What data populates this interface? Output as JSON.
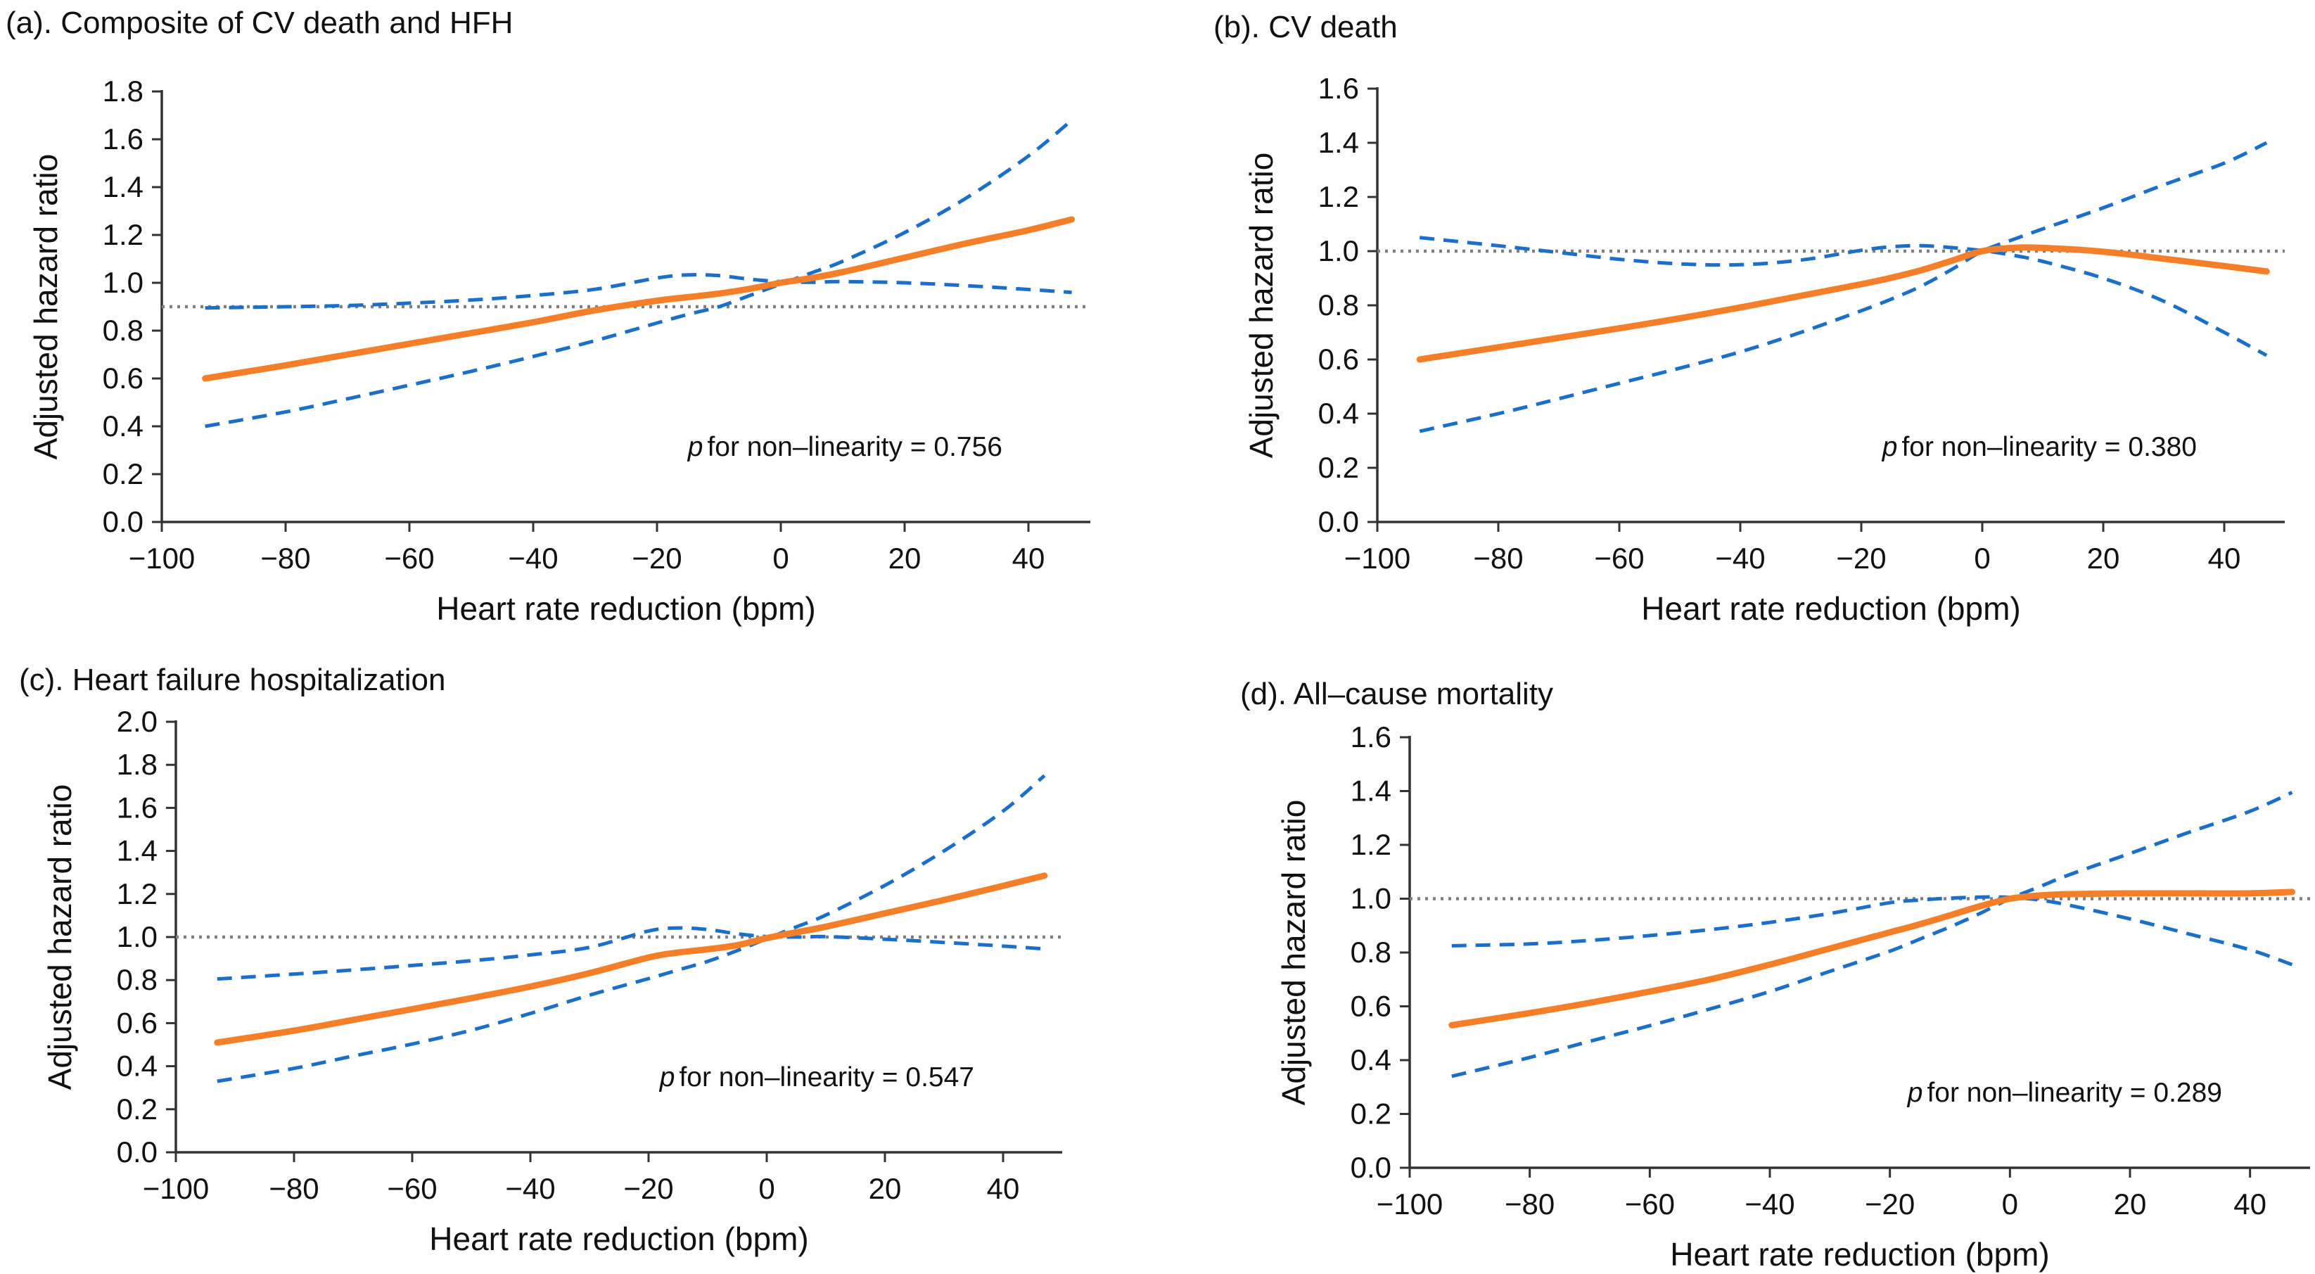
{
  "figure": {
    "p_symbol": "p",
    "colors": {
      "estimate": "#F57E28",
      "confidence_band": "#1C6FC8",
      "reference_line": "#7F7F7F",
      "axis": "#333333",
      "text": "#111111"
    }
  },
  "chart_data": [
    {
      "type": "line",
      "title": "(a). Composite of CV death and HFH",
      "xlabel": "Heart rate reduction (bpm)",
      "ylabel": "Adjusted hazard ratio",
      "p_note": "for non–linearity = 0.756",
      "p_value": 0.756,
      "xlim": [
        -100,
        50
      ],
      "ylim": [
        0,
        1.8
      ],
      "x_ticks": [
        -100,
        -80,
        -60,
        -40,
        -20,
        0,
        20,
        40
      ],
      "y_ticks": [
        0.0,
        0.2,
        0.4,
        0.6,
        0.8,
        1.0,
        1.2,
        1.4,
        1.6,
        1.8
      ],
      "reference_line_y": 0.9,
      "grid": false,
      "legend": "none",
      "x": [
        -93,
        -80,
        -70,
        -60,
        -50,
        -40,
        -30,
        -20,
        -15,
        -10,
        -5,
        0,
        5,
        10,
        20,
        30,
        40,
        47
      ],
      "series": [
        {
          "name": "Adjusted hazard ratio (estimate)",
          "style": "solid",
          "y": [
            0.6,
            0.655,
            0.7,
            0.745,
            0.79,
            0.835,
            0.885,
            0.925,
            0.94,
            0.955,
            0.975,
            1.0,
            1.02,
            1.045,
            1.105,
            1.165,
            1.22,
            1.265
          ]
        },
        {
          "name": "95% CI band A",
          "style": "dashed",
          "y": [
            0.895,
            0.9,
            0.905,
            0.915,
            0.928,
            0.947,
            0.973,
            1.02,
            1.033,
            1.03,
            1.015,
            1.005,
            1.002,
            1.005,
            1.0,
            0.988,
            0.972,
            0.96
          ]
        },
        {
          "name": "95% CI band B",
          "style": "dashed",
          "y": [
            0.4,
            0.46,
            0.515,
            0.572,
            0.63,
            0.692,
            0.758,
            0.832,
            0.868,
            0.9,
            0.947,
            0.995,
            1.042,
            1.09,
            1.21,
            1.355,
            1.53,
            1.68
          ]
        }
      ]
    },
    {
      "type": "line",
      "title": "(b). CV death",
      "xlabel": "Heart rate reduction (bpm)",
      "ylabel": "Adjusted hazard ratio",
      "p_note": "for non–linearity = 0.380",
      "p_value": 0.38,
      "xlim": [
        -100,
        50
      ],
      "ylim": [
        0,
        1.6
      ],
      "x_ticks": [
        -100,
        -80,
        -60,
        -40,
        -20,
        0,
        20,
        40
      ],
      "y_ticks": [
        0.0,
        0.2,
        0.4,
        0.6,
        0.8,
        1.0,
        1.2,
        1.4,
        1.6
      ],
      "reference_line_y": 1.0,
      "grid": false,
      "legend": "none",
      "x": [
        -93,
        -80,
        -70,
        -60,
        -50,
        -40,
        -30,
        -20,
        -15,
        -10,
        -5,
        0,
        5,
        10,
        20,
        30,
        40,
        47
      ],
      "series": [
        {
          "name": "Adjusted hazard ratio (estimate)",
          "style": "solid",
          "y": [
            0.6,
            0.645,
            0.68,
            0.715,
            0.752,
            0.792,
            0.835,
            0.878,
            0.902,
            0.93,
            0.965,
            1.0,
            1.012,
            1.012,
            0.998,
            0.972,
            0.945,
            0.925
          ]
        },
        {
          "name": "95% CI band A",
          "style": "dashed",
          "y": [
            1.05,
            1.02,
            0.995,
            0.97,
            0.953,
            0.95,
            0.967,
            1.003,
            1.016,
            1.02,
            1.013,
            1.002,
            0.985,
            0.962,
            0.9,
            0.815,
            0.7,
            0.615
          ]
        },
        {
          "name": "95% CI band B",
          "style": "dashed",
          "y": [
            0.335,
            0.4,
            0.455,
            0.512,
            0.568,
            0.628,
            0.7,
            0.78,
            0.823,
            0.872,
            0.933,
            1.0,
            1.042,
            1.082,
            1.16,
            1.245,
            1.325,
            1.4
          ]
        }
      ]
    },
    {
      "type": "line",
      "title": "(c). Heart failure hospitalization",
      "xlabel": "Heart rate reduction (bpm)",
      "ylabel": "Adjusted hazard ratio",
      "p_note": "for non–linearity = 0.547",
      "p_value": 0.547,
      "xlim": [
        -100,
        50
      ],
      "ylim": [
        0,
        2.0
      ],
      "x_ticks": [
        -100,
        -80,
        -60,
        -40,
        -20,
        0,
        20,
        40
      ],
      "y_ticks": [
        0.0,
        0.2,
        0.4,
        0.6,
        0.8,
        1.0,
        1.2,
        1.4,
        1.6,
        1.8,
        2.0
      ],
      "reference_line_y": 1.0,
      "grid": false,
      "legend": "none",
      "x": [
        -93,
        -80,
        -70,
        -60,
        -50,
        -40,
        -30,
        -20,
        -15,
        -10,
        -5,
        0,
        5,
        10,
        20,
        30,
        40,
        47
      ],
      "series": [
        {
          "name": "Adjusted hazard ratio (estimate)",
          "style": "solid",
          "y": [
            0.51,
            0.565,
            0.615,
            0.665,
            0.716,
            0.77,
            0.832,
            0.905,
            0.928,
            0.943,
            0.962,
            0.995,
            1.022,
            1.048,
            1.11,
            1.172,
            1.238,
            1.285
          ]
        },
        {
          "name": "95% CI band A",
          "style": "dashed",
          "y": [
            0.805,
            0.828,
            0.847,
            0.868,
            0.89,
            0.917,
            0.952,
            1.028,
            1.042,
            1.035,
            1.015,
            1.002,
            1.0,
            1.002,
            0.99,
            0.975,
            0.958,
            0.945
          ]
        },
        {
          "name": "95% CI band B",
          "style": "dashed",
          "y": [
            0.33,
            0.39,
            0.447,
            0.503,
            0.567,
            0.645,
            0.73,
            0.807,
            0.847,
            0.887,
            0.937,
            0.992,
            1.047,
            1.102,
            1.24,
            1.4,
            1.585,
            1.75
          ]
        }
      ]
    },
    {
      "type": "line",
      "title": "(d). All–cause mortality",
      "xlabel": "Heart rate reduction (bpm)",
      "ylabel": "Adjusted hazard ratio",
      "p_note": "for non–linearity = 0.289",
      "p_value": 0.289,
      "xlim": [
        -100,
        50
      ],
      "ylim": [
        0,
        1.6
      ],
      "x_ticks": [
        -100,
        -80,
        -60,
        -40,
        -20,
        0,
        20,
        40
      ],
      "y_ticks": [
        0.0,
        0.2,
        0.4,
        0.6,
        0.8,
        1.0,
        1.2,
        1.4,
        1.6
      ],
      "reference_line_y": 1.0,
      "grid": false,
      "legend": "none",
      "x": [
        -93,
        -80,
        -70,
        -60,
        -50,
        -40,
        -30,
        -20,
        -15,
        -10,
        -5,
        0,
        5,
        10,
        20,
        30,
        40,
        47
      ],
      "series": [
        {
          "name": "Adjusted hazard ratio (estimate)",
          "style": "solid",
          "y": [
            0.53,
            0.575,
            0.613,
            0.655,
            0.7,
            0.755,
            0.815,
            0.875,
            0.905,
            0.938,
            0.972,
            1.0,
            1.012,
            1.017,
            1.02,
            1.02,
            1.02,
            1.025
          ]
        },
        {
          "name": "95% CI band A",
          "style": "dashed",
          "y": [
            0.825,
            0.832,
            0.845,
            0.863,
            0.885,
            0.912,
            0.945,
            0.985,
            0.995,
            1.002,
            1.006,
            1.005,
            0.995,
            0.975,
            0.925,
            0.868,
            0.81,
            0.755
          ]
        },
        {
          "name": "95% CI band B",
          "style": "dashed",
          "y": [
            0.34,
            0.41,
            0.47,
            0.528,
            0.59,
            0.655,
            0.73,
            0.805,
            0.85,
            0.895,
            0.945,
            1.0,
            1.045,
            1.09,
            1.168,
            1.248,
            1.325,
            1.395
          ]
        }
      ]
    }
  ]
}
